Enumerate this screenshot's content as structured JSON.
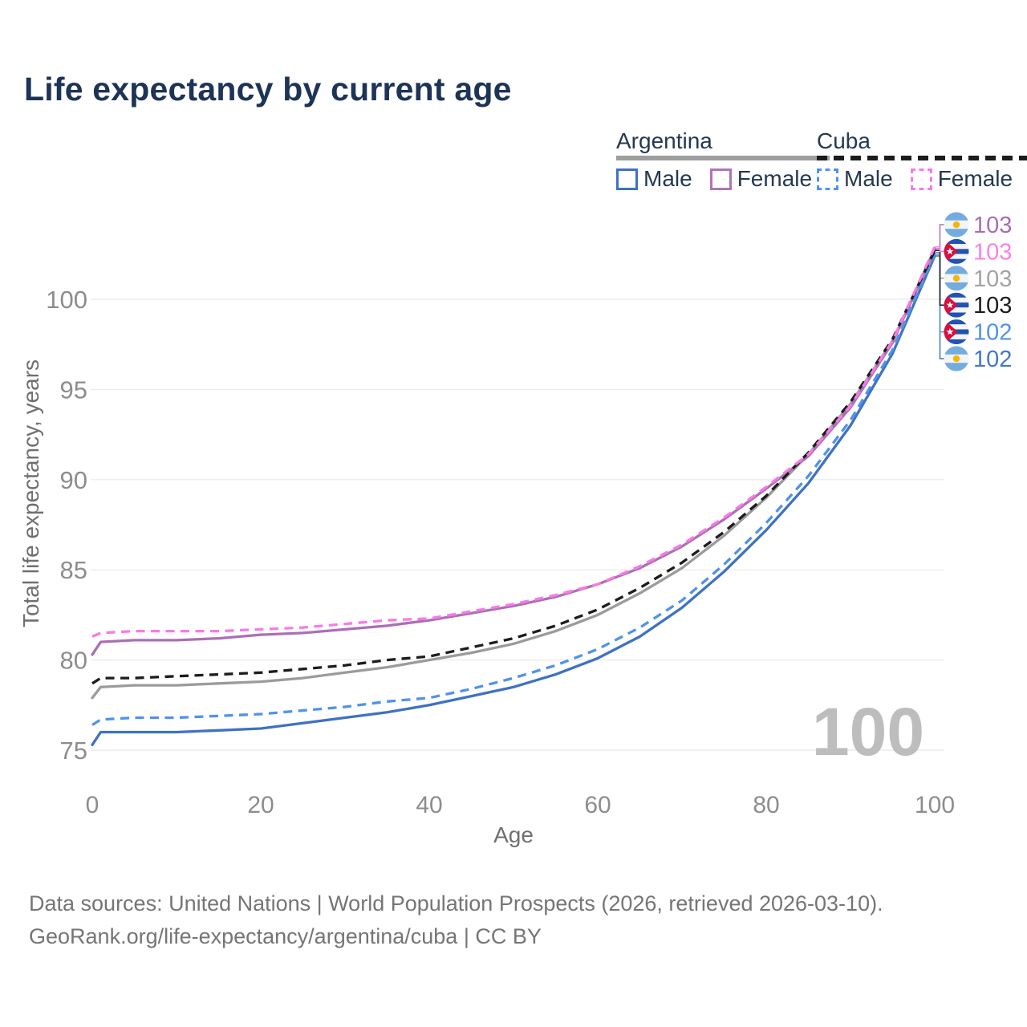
{
  "header": {
    "title": "Life expectancy by current age"
  },
  "legend": {
    "groups": [
      {
        "country": "Argentina",
        "line_style": "solid",
        "underline_color": "#9e9e9e",
        "items": [
          {
            "label": "Male",
            "color": "#3e72c2"
          },
          {
            "label": "Female",
            "color": "#b073b8"
          }
        ]
      },
      {
        "country": "Cuba",
        "line_style": "dashed",
        "underline_color": "#1c1c1c",
        "items": [
          {
            "label": "Male",
            "color": "#4f93ea"
          },
          {
            "label": "Female",
            "color": "#f87ae8"
          }
        ]
      }
    ]
  },
  "chart_data": {
    "type": "line",
    "title": "Life expectancy by current age",
    "xlabel": "Age",
    "ylabel": "Total life expectancy, years",
    "xticks": [
      0,
      20,
      40,
      60,
      80,
      100
    ],
    "yticks": [
      75,
      80,
      85,
      90,
      95,
      100
    ],
    "xlim": [
      0,
      100
    ],
    "ylim": [
      75,
      100
    ],
    "grid": "horizontal-only",
    "legend_position": "top-right",
    "watermark": "100",
    "x": [
      0,
      1,
      5,
      10,
      15,
      20,
      25,
      30,
      35,
      40,
      45,
      50,
      55,
      60,
      65,
      70,
      75,
      80,
      85,
      90,
      95,
      100
    ],
    "series": [
      {
        "name": "Argentina Male",
        "country": "argentina",
        "sex": "male",
        "color": "#3e72c2",
        "dashed": false,
        "end_label": "102",
        "label_color": "#4377c9",
        "label_slot": 5,
        "values": [
          75.3,
          76.0,
          76.0,
          76.0,
          76.1,
          76.2,
          76.5,
          76.8,
          77.1,
          77.5,
          78.0,
          78.5,
          79.2,
          80.1,
          81.3,
          82.9,
          84.9,
          87.2,
          89.8,
          93.0,
          97.0,
          102.4
        ]
      },
      {
        "name": "Argentina Total",
        "country": "argentina",
        "sex": "all",
        "color": "#9b9b9b",
        "dashed": false,
        "end_label": "103",
        "label_color": "#a3a3a3",
        "label_slot": 2,
        "values": [
          77.9,
          78.5,
          78.6,
          78.6,
          78.7,
          78.8,
          79.0,
          79.3,
          79.6,
          80.0,
          80.4,
          80.9,
          81.6,
          82.5,
          83.7,
          85.1,
          86.9,
          89.0,
          91.4,
          94.2,
          97.7,
          102.6
        ]
      },
      {
        "name": "Argentina Female",
        "country": "argentina",
        "sex": "female",
        "color": "#ab6fb5",
        "dashed": false,
        "end_label": "103",
        "label_color": "#a96cb3",
        "label_slot": 0,
        "values": [
          80.3,
          81.0,
          81.1,
          81.1,
          81.2,
          81.4,
          81.5,
          81.7,
          81.9,
          82.2,
          82.6,
          83.0,
          83.5,
          84.2,
          85.1,
          86.3,
          87.8,
          89.5,
          91.3,
          94.0,
          97.6,
          102.8
        ]
      },
      {
        "name": "Cuba Male",
        "country": "cuba",
        "sex": "male",
        "color": "#4f93ea",
        "dashed": true,
        "end_label": "102",
        "label_color": "#4f93ea",
        "label_slot": 4,
        "values": [
          76.4,
          76.7,
          76.8,
          76.8,
          76.9,
          77.0,
          77.2,
          77.4,
          77.7,
          77.9,
          78.4,
          79.0,
          79.7,
          80.6,
          81.8,
          83.3,
          85.3,
          87.6,
          90.2,
          93.3,
          97.2,
          102.5
        ]
      },
      {
        "name": "Cuba Total",
        "country": "cuba",
        "sex": "all",
        "color": "#1c1c1c",
        "dashed": true,
        "end_label": "103",
        "label_color": "#1c1c1c",
        "label_slot": 3,
        "values": [
          78.7,
          79.0,
          79.0,
          79.1,
          79.2,
          79.3,
          79.5,
          79.7,
          80.0,
          80.2,
          80.7,
          81.2,
          81.9,
          82.8,
          84.0,
          85.4,
          87.1,
          89.1,
          91.5,
          94.3,
          97.8,
          102.7
        ]
      },
      {
        "name": "Cuba Female",
        "country": "cuba",
        "sex": "female",
        "color": "#f87ae8",
        "dashed": true,
        "end_label": "103",
        "label_color": "#fb80ea",
        "label_slot": 1,
        "values": [
          81.3,
          81.5,
          81.6,
          81.6,
          81.6,
          81.7,
          81.8,
          82.0,
          82.2,
          82.3,
          82.7,
          83.1,
          83.6,
          84.2,
          85.2,
          86.4,
          87.9,
          89.6,
          91.4,
          94.1,
          97.7,
          102.9
        ]
      }
    ],
    "flag_colors": {
      "argentina": {
        "band": "#74ACDF",
        "white": "#f3f4f5",
        "sun": "#F6B40E"
      },
      "cuba": {
        "blue": "#2053B4",
        "white": "#f4f4f6",
        "red": "#D4123E",
        "star": "#ffffff"
      }
    },
    "style": {
      "grid_color": "#ececec",
      "tick_color": "#8d8d8d",
      "axis_title_color": "#6f6f6f",
      "watermark_color": "#bdbdbd"
    }
  },
  "footer": {
    "line1": "Data sources: United Nations | World Population Prospects (2026, retrieved 2026-03-10).",
    "line2": "GeoRank.org/life-expectancy/argentina/cuba | CC BY"
  }
}
